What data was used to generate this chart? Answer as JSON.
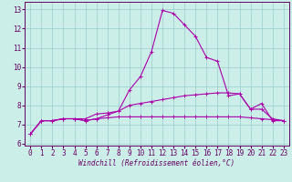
{
  "xlabel": "Windchill (Refroidissement éolien,°C)",
  "bg_color": "#cceee8",
  "grid_color": "#99cccc",
  "line_color": "#aa00aa",
  "spine_color": "#660066",
  "x_ticks": [
    0,
    1,
    2,
    3,
    4,
    5,
    6,
    7,
    8,
    9,
    10,
    11,
    12,
    13,
    14,
    15,
    16,
    17,
    18,
    19,
    20,
    21,
    22,
    23
  ],
  "y_ticks": [
    6,
    7,
    8,
    9,
    10,
    11,
    12,
    13
  ],
  "xlim": [
    -0.5,
    23.5
  ],
  "ylim": [
    5.9,
    13.4
  ],
  "line1": {
    "x": [
      0,
      1,
      2,
      3,
      4,
      5,
      6,
      7,
      8,
      9,
      10,
      11,
      12,
      13,
      14,
      15,
      16,
      17,
      18,
      19,
      20,
      21,
      22,
      23
    ],
    "y": [
      6.5,
      7.2,
      7.2,
      7.3,
      7.3,
      7.2,
      7.3,
      7.5,
      7.7,
      8.8,
      9.5,
      10.8,
      12.95,
      12.8,
      12.2,
      11.6,
      10.5,
      10.3,
      8.5,
      8.6,
      7.8,
      8.1,
      7.2,
      7.2
    ]
  },
  "line2": {
    "x": [
      0,
      1,
      2,
      3,
      4,
      5,
      6,
      7,
      8,
      9,
      10,
      11,
      12,
      13,
      14,
      15,
      16,
      17,
      18,
      19,
      20,
      21,
      22,
      23
    ],
    "y": [
      6.5,
      7.2,
      7.2,
      7.3,
      7.3,
      7.3,
      7.55,
      7.6,
      7.7,
      8.0,
      8.1,
      8.2,
      8.3,
      8.4,
      8.5,
      8.55,
      8.6,
      8.65,
      8.65,
      8.6,
      7.8,
      7.8,
      7.3,
      7.2
    ]
  },
  "line3": {
    "x": [
      0,
      1,
      2,
      3,
      4,
      5,
      6,
      7,
      8,
      9,
      10,
      11,
      12,
      13,
      14,
      15,
      16,
      17,
      18,
      19,
      20,
      21,
      22,
      23
    ],
    "y": [
      6.5,
      7.2,
      7.2,
      7.3,
      7.3,
      7.2,
      7.3,
      7.35,
      7.4,
      7.4,
      7.4,
      7.4,
      7.4,
      7.4,
      7.4,
      7.4,
      7.4,
      7.4,
      7.4,
      7.4,
      7.35,
      7.3,
      7.25,
      7.2
    ]
  },
  "tick_fontsize": 5.5,
  "xlabel_fontsize": 5.5,
  "marker_size": 2.5,
  "linewidth": 0.8
}
